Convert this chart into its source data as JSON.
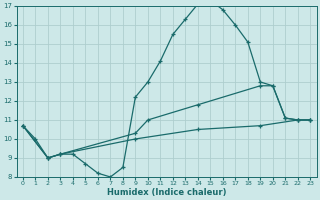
{
  "line1_x": [
    0,
    1,
    2,
    3,
    4,
    5,
    6,
    7,
    8,
    9,
    10,
    11,
    12,
    13,
    14,
    15,
    16,
    17,
    18,
    19,
    20,
    21,
    22,
    23
  ],
  "line1_y": [
    10.7,
    10.0,
    9.0,
    9.2,
    9.2,
    8.7,
    8.2,
    8.0,
    8.5,
    12.2,
    13.0,
    14.1,
    15.5,
    16.3,
    17.1,
    17.3,
    16.8,
    16.0,
    15.1,
    13.0,
    12.8,
    11.1,
    11.0,
    11.0
  ],
  "line2_x": [
    0,
    2,
    3,
    9,
    10,
    14,
    19,
    20,
    21,
    22,
    23
  ],
  "line2_y": [
    10.7,
    9.0,
    9.2,
    10.3,
    11.0,
    11.8,
    12.8,
    12.8,
    11.1,
    11.0,
    11.0
  ],
  "line3_x": [
    0,
    2,
    3,
    9,
    14,
    19,
    22,
    23
  ],
  "line3_y": [
    10.7,
    9.0,
    9.2,
    10.0,
    10.5,
    10.7,
    11.0,
    11.0
  ],
  "color": "#1a6b6b",
  "bg_color": "#cde8e8",
  "grid_color": "#aecece",
  "xlabel": "Humidex (Indice chaleur)",
  "xlim": [
    -0.5,
    23.5
  ],
  "ylim": [
    8,
    17
  ],
  "xticks": [
    0,
    1,
    2,
    3,
    4,
    5,
    6,
    7,
    8,
    9,
    10,
    11,
    12,
    13,
    14,
    15,
    16,
    17,
    18,
    19,
    20,
    21,
    22,
    23
  ],
  "yticks": [
    8,
    9,
    10,
    11,
    12,
    13,
    14,
    15,
    16,
    17
  ],
  "xlabel_fontsize": 6.0,
  "tick_fontsize": 5.0
}
